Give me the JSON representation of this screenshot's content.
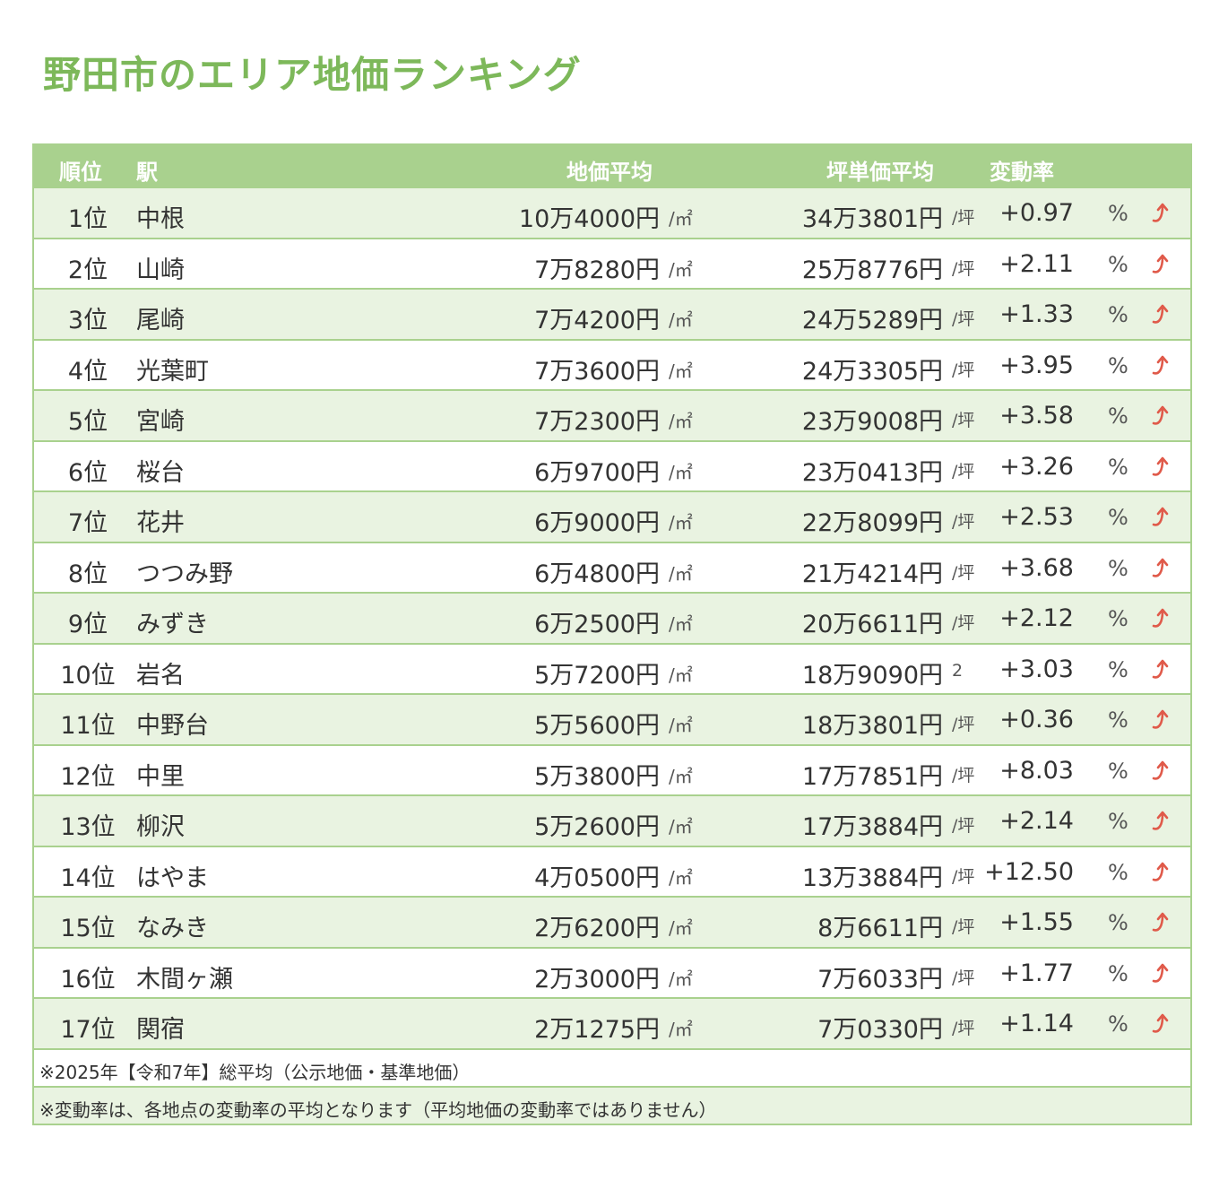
{
  "title": "野田市のエリア地価ランキング",
  "columns": {
    "rank": "順位",
    "station": "駅",
    "land_price": "地価平均",
    "tsubo_price": "坪単価平均",
    "change_rate": "変動率"
  },
  "units": {
    "sqm": "/㎡",
    "tsubo": "/坪",
    "percent": "%"
  },
  "rows": [
    {
      "rank": "1位",
      "station": "中根",
      "price": "10万4000円",
      "price_unit": "/㎡",
      "tsubo": "34万3801円",
      "tsubo_unit": "/坪",
      "rate": "+0.97",
      "pct": "%"
    },
    {
      "rank": "2位",
      "station": "山崎",
      "price": "7万8280円",
      "price_unit": "/㎡",
      "tsubo": "25万8776円",
      "tsubo_unit": "/坪",
      "rate": "+2.11",
      "pct": "%"
    },
    {
      "rank": "3位",
      "station": "尾崎",
      "price": "7万4200円",
      "price_unit": "/㎡",
      "tsubo": "24万5289円",
      "tsubo_unit": "/坪",
      "rate": "+1.33",
      "pct": "%"
    },
    {
      "rank": "4位",
      "station": "光葉町",
      "price": "7万3600円",
      "price_unit": "/㎡",
      "tsubo": "24万3305円",
      "tsubo_unit": "/坪",
      "rate": "+3.95",
      "pct": "%"
    },
    {
      "rank": "5位",
      "station": "宮崎",
      "price": "7万2300円",
      "price_unit": "/㎡",
      "tsubo": "23万9008円",
      "tsubo_unit": "/坪",
      "rate": "+3.58",
      "pct": "%"
    },
    {
      "rank": "6位",
      "station": "桜台",
      "price": "6万9700円",
      "price_unit": "/㎡",
      "tsubo": "23万0413円",
      "tsubo_unit": "/坪",
      "rate": "+3.26",
      "pct": "%"
    },
    {
      "rank": "7位",
      "station": "花井",
      "price": "6万9000円",
      "price_unit": "/㎡",
      "tsubo": "22万8099円",
      "tsubo_unit": "/坪",
      "rate": "+2.53",
      "pct": "%"
    },
    {
      "rank": "8位",
      "station": "つつみ野",
      "price": "6万4800円",
      "price_unit": "/㎡",
      "tsubo": "21万4214円",
      "tsubo_unit": "/坪",
      "rate": "+3.68",
      "pct": "%"
    },
    {
      "rank": "9位",
      "station": "みずき",
      "price": "6万2500円",
      "price_unit": "/㎡",
      "tsubo": "20万6611円",
      "tsubo_unit": "/坪",
      "rate": "+2.12",
      "pct": "%"
    },
    {
      "rank": "10位",
      "station": "岩名",
      "price": "5万7200円",
      "price_unit": "/㎡",
      "tsubo": "18万9090円",
      "tsubo_unit": "2",
      "rate": "+3.03",
      "pct": "%"
    },
    {
      "rank": "11位",
      "station": "中野台",
      "price": "5万5600円",
      "price_unit": "/㎡",
      "tsubo": "18万3801円",
      "tsubo_unit": "/坪",
      "rate": "+0.36",
      "pct": "%"
    },
    {
      "rank": "12位",
      "station": "中里",
      "price": "5万3800円",
      "price_unit": "/㎡",
      "tsubo": "17万7851円",
      "tsubo_unit": "/坪",
      "rate": "+8.03",
      "pct": "%"
    },
    {
      "rank": "13位",
      "station": "柳沢",
      "price": "5万2600円",
      "price_unit": "/㎡",
      "tsubo": "17万3884円",
      "tsubo_unit": "/坪",
      "rate": "+2.14",
      "pct": "%"
    },
    {
      "rank": "14位",
      "station": "はやま",
      "price": "4万0500円",
      "price_unit": "/㎡",
      "tsubo": "13万3884円",
      "tsubo_unit": "/坪",
      "rate": "+12.50",
      "pct": "%"
    },
    {
      "rank": "15位",
      "station": "なみき",
      "price": "2万6200円",
      "price_unit": "/㎡",
      "tsubo": "8万6611円",
      "tsubo_unit": "/坪",
      "rate": "+1.55",
      "pct": "%"
    },
    {
      "rank": "16位",
      "station": "木間ヶ瀬",
      "price": "2万3000円",
      "price_unit": "/㎡",
      "tsubo": "7万6033円",
      "tsubo_unit": "/坪",
      "rate": "+1.77",
      "pct": "%"
    },
    {
      "rank": "17位",
      "station": "関宿",
      "price": "2万1275円",
      "price_unit": "/㎡",
      "tsubo": "7万0330円",
      "tsubo_unit": "/坪",
      "rate": "+1.14",
      "pct": "%"
    }
  ],
  "notes": [
    "※2025年【令和7年】総平均（公示地価・基準地価）",
    "※変動率は、各地点の変動率の平均となります（平均地価の変動率ではありません）"
  ],
  "icons": {
    "rate_arrow": "up-arrow-icon"
  },
  "colors": {
    "title": "#7db85a",
    "header_bg": "#a9d18e",
    "odd_row_bg": "#e9f3e1",
    "arrow": "#e05a4a"
  }
}
